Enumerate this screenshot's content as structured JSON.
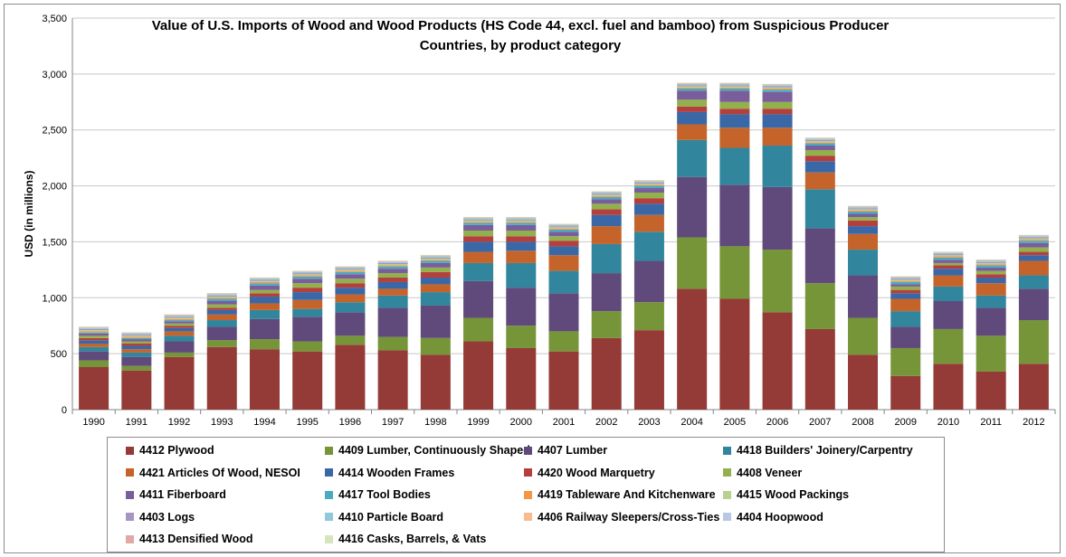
{
  "chart_data": {
    "type": "bar",
    "stacked": true,
    "title": "Value of U.S. Imports of Wood and Wood Products (HS Code 44, excl. fuel and bamboo) from Suspicious Producer Countries, by product category",
    "ylabel": "USD (in millions)",
    "xlabel": "",
    "ylim": [
      0,
      3500
    ],
    "yticks": [
      0,
      500,
      1000,
      1500,
      2000,
      2500,
      3000,
      3500
    ],
    "ytick_labels": [
      "0",
      "500",
      "1,000",
      "1,500",
      "2,000",
      "2,500",
      "3,000",
      "3,500"
    ],
    "grid": true,
    "legend_position": "bottom",
    "categories": [
      "1990",
      "1991",
      "1992",
      "1993",
      "1994",
      "1995",
      "1996",
      "1997",
      "1998",
      "1999",
      "2000",
      "2001",
      "2002",
      "2003",
      "2004",
      "2005",
      "2006",
      "2007",
      "2008",
      "2009",
      "2010",
      "2011",
      "2012"
    ],
    "series": [
      {
        "name": "4412 Plywood",
        "color": "#943a37",
        "values": [
          380,
          350,
          470,
          560,
          540,
          520,
          580,
          530,
          490,
          610,
          550,
          520,
          640,
          710,
          1080,
          990,
          870,
          720,
          490,
          300,
          410,
          340,
          410
        ]
      },
      {
        "name": "4409 Lumber, Continuously Shaped",
        "color": "#769538",
        "values": [
          60,
          40,
          40,
          60,
          90,
          90,
          80,
          120,
          150,
          210,
          200,
          180,
          240,
          250,
          460,
          470,
          560,
          410,
          330,
          250,
          310,
          320,
          390
        ]
      },
      {
        "name": "4407 Lumber",
        "color": "#604a7b",
        "values": [
          80,
          80,
          100,
          120,
          180,
          220,
          210,
          260,
          290,
          330,
          340,
          340,
          340,
          370,
          540,
          550,
          560,
          490,
          380,
          190,
          250,
          250,
          280
        ]
      },
      {
        "name": "4418 Builders' Joinery/Carpentry",
        "color": "#31859c",
        "values": [
          40,
          40,
          50,
          60,
          80,
          70,
          90,
          110,
          120,
          160,
          220,
          200,
          260,
          260,
          330,
          330,
          370,
          350,
          230,
          140,
          130,
          110,
          120
        ]
      },
      {
        "name": "4421 Articles Of Wood, NESOI",
        "color": "#c4642a",
        "values": [
          30,
          30,
          40,
          50,
          60,
          80,
          70,
          60,
          70,
          100,
          110,
          140,
          160,
          150,
          140,
          180,
          160,
          150,
          140,
          110,
          100,
          110,
          130
        ]
      },
      {
        "name": "4414 Wooden Frames",
        "color": "#3a68a6",
        "values": [
          30,
          30,
          30,
          40,
          60,
          70,
          60,
          60,
          60,
          90,
          80,
          80,
          100,
          100,
          110,
          120,
          120,
          100,
          70,
          50,
          60,
          50,
          50
        ]
      },
      {
        "name": "4420 Wood Marquetry",
        "color": "#b3403d",
        "values": [
          20,
          20,
          20,
          20,
          30,
          40,
          40,
          40,
          50,
          50,
          50,
          50,
          50,
          50,
          50,
          50,
          50,
          50,
          50,
          30,
          30,
          30,
          30
        ]
      },
      {
        "name": "4408 Veneer",
        "color": "#92b04b",
        "values": [
          20,
          20,
          20,
          30,
          30,
          40,
          40,
          40,
          40,
          50,
          50,
          40,
          50,
          50,
          60,
          60,
          60,
          50,
          30,
          30,
          20,
          30,
          40
        ]
      },
      {
        "name": "4411 Fiberboard",
        "color": "#7a5d9b",
        "values": [
          20,
          20,
          20,
          30,
          40,
          40,
          40,
          40,
          40,
          50,
          50,
          40,
          40,
          40,
          80,
          100,
          90,
          40,
          30,
          20,
          30,
          30,
          40
        ]
      },
      {
        "name": "4417 Tool Bodies",
        "color": "#4aaac4",
        "values": [
          10,
          10,
          10,
          20,
          20,
          20,
          20,
          20,
          20,
          20,
          20,
          20,
          20,
          20,
          20,
          20,
          20,
          20,
          20,
          20,
          20,
          20,
          20
        ]
      },
      {
        "name": "4419 Tableware And Kitchenware",
        "color": "#f39746",
        "values": [
          10,
          10,
          10,
          10,
          10,
          10,
          10,
          10,
          10,
          10,
          10,
          10,
          10,
          10,
          10,
          10,
          10,
          10,
          10,
          10,
          10,
          10,
          10
        ]
      },
      {
        "name": "4415 Wood Packings",
        "color": "#b8d28e",
        "values": [
          10,
          10,
          10,
          10,
          10,
          10,
          10,
          10,
          10,
          10,
          10,
          10,
          10,
          10,
          10,
          10,
          10,
          10,
          10,
          10,
          10,
          10,
          10
        ]
      },
      {
        "name": "4403 Logs",
        "color": "#a794c2",
        "values": [
          10,
          10,
          10,
          10,
          10,
          10,
          10,
          10,
          10,
          10,
          10,
          10,
          10,
          10,
          10,
          10,
          10,
          10,
          10,
          10,
          10,
          10,
          10
        ]
      },
      {
        "name": "4410 Particle Board",
        "color": "#91c7dc",
        "values": [
          10,
          10,
          10,
          10,
          10,
          10,
          10,
          10,
          10,
          10,
          10,
          10,
          10,
          10,
          10,
          10,
          10,
          10,
          10,
          10,
          10,
          10,
          10
        ]
      },
      {
        "name": "4406 Railway Sleepers/Cross-Ties",
        "color": "#f9bb8d",
        "values": [
          5,
          5,
          5,
          5,
          5,
          5,
          5,
          5,
          5,
          5,
          5,
          5,
          5,
          5,
          5,
          5,
          5,
          5,
          5,
          5,
          5,
          5,
          5
        ]
      },
      {
        "name": "4404 Hoopwood",
        "color": "#b8c7e3",
        "values": [
          3,
          3,
          3,
          3,
          3,
          3,
          3,
          3,
          3,
          3,
          3,
          3,
          3,
          3,
          3,
          3,
          3,
          3,
          3,
          3,
          3,
          3,
          3
        ]
      },
      {
        "name": "4413 Densified Wood",
        "color": "#e0a8a6",
        "values": [
          2,
          2,
          2,
          2,
          2,
          2,
          2,
          2,
          2,
          2,
          2,
          2,
          2,
          2,
          2,
          2,
          2,
          2,
          2,
          2,
          2,
          2,
          2
        ]
      },
      {
        "name": "4416 Casks, Barrels, & Vats",
        "color": "#d7e4bd",
        "values": [
          2,
          2,
          2,
          2,
          2,
          2,
          2,
          2,
          2,
          2,
          2,
          2,
          2,
          2,
          2,
          2,
          2,
          2,
          2,
          2,
          2,
          2,
          2
        ]
      }
    ]
  }
}
